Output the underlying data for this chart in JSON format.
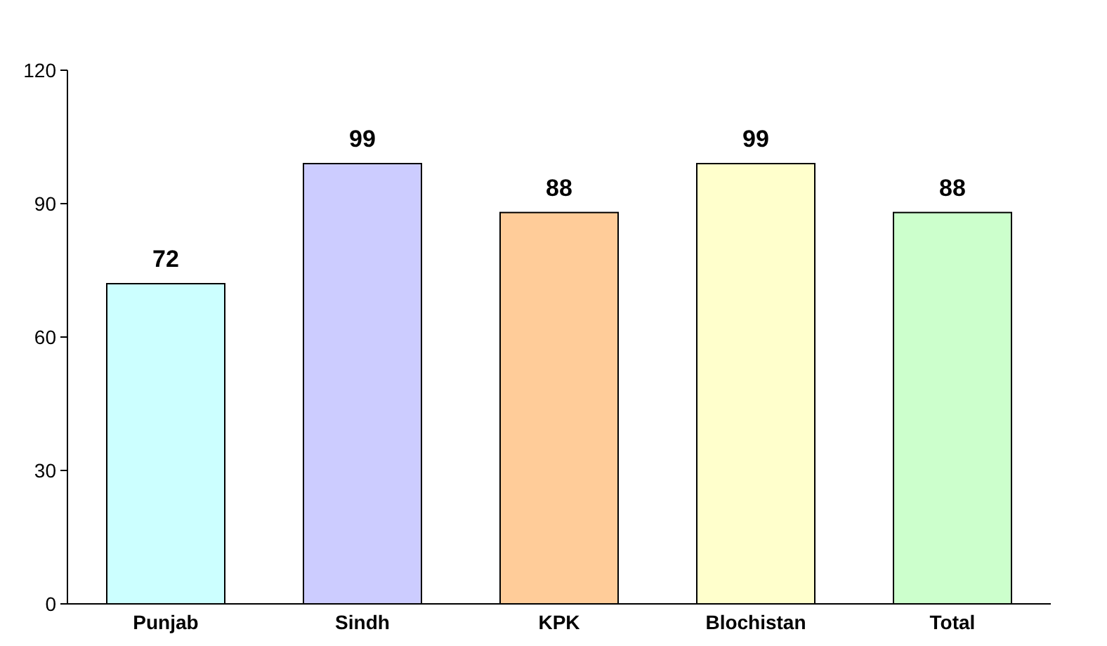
{
  "chart_data": {
    "type": "bar",
    "categories": [
      "Punjab",
      "Sindh",
      "KPK",
      "Blochistan",
      "Total"
    ],
    "values": [
      72,
      99,
      88,
      99,
      88
    ],
    "colors": [
      "#ccffff",
      "#ccccff",
      "#ffcc99",
      "#ffffcc",
      "#ccffcc"
    ],
    "ylim": [
      0,
      120
    ],
    "yticks": [
      0,
      30,
      60,
      90,
      120
    ],
    "data_labels": true,
    "grid": false
  }
}
